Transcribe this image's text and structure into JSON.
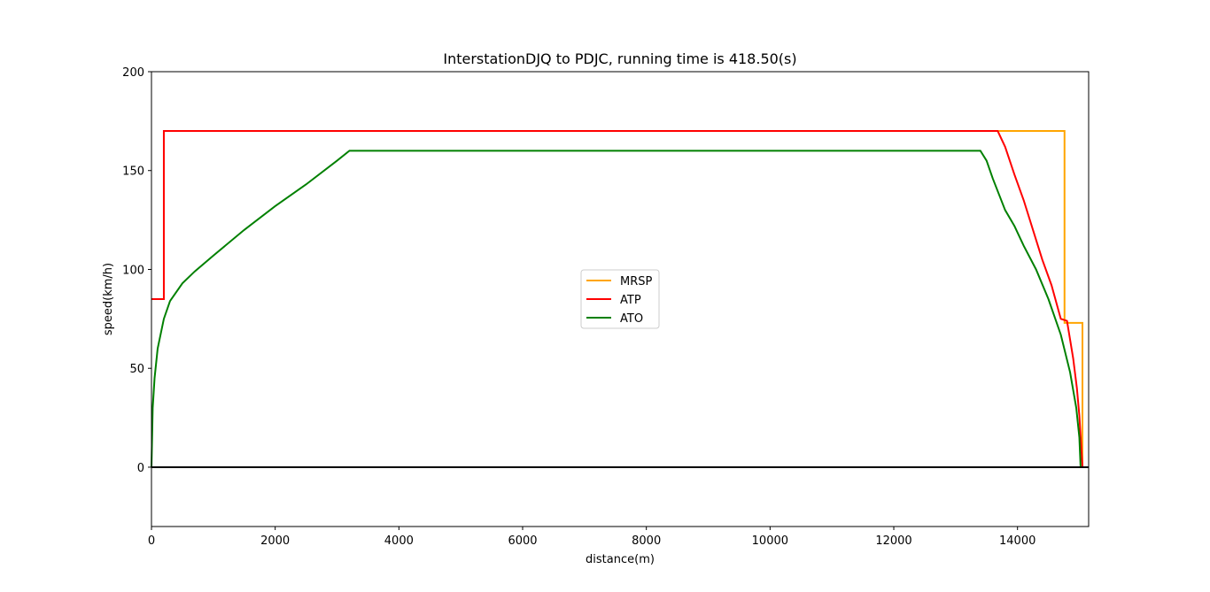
{
  "chart_data": {
    "type": "line",
    "title": "InterstationDJQ to PDJC, running time is 418.50(s)",
    "xlabel": "distance(m)",
    "ylabel": "speed(km/h)",
    "xlim": [
      0,
      15150
    ],
    "ylim": [
      -30,
      200
    ],
    "xticks": [
      0,
      2000,
      4000,
      6000,
      8000,
      10000,
      12000,
      14000
    ],
    "yticks": [
      0,
      50,
      100,
      150,
      200
    ],
    "grid": false,
    "legend_position": "center",
    "zero_line": {
      "y": 0,
      "color": "#000000"
    },
    "series": [
      {
        "name": "MRSP",
        "color": "#ffa500",
        "points": [
          [
            0,
            85
          ],
          [
            200,
            85
          ],
          [
            200,
            170
          ],
          [
            14760,
            170
          ],
          [
            14760,
            73
          ],
          [
            15050,
            73
          ],
          [
            15050,
            0
          ]
        ]
      },
      {
        "name": "ATP",
        "color": "#ff0000",
        "points": [
          [
            0,
            85
          ],
          [
            200,
            85
          ],
          [
            200,
            170
          ],
          [
            13680,
            170
          ],
          [
            13800,
            162
          ],
          [
            13950,
            148
          ],
          [
            14100,
            135
          ],
          [
            14250,
            120
          ],
          [
            14400,
            105
          ],
          [
            14550,
            92
          ],
          [
            14700,
            75
          ],
          [
            14800,
            74
          ],
          [
            14900,
            55
          ],
          [
            14960,
            40
          ],
          [
            15000,
            26
          ],
          [
            15030,
            10
          ],
          [
            15050,
            0
          ]
        ]
      },
      {
        "name": "ATO",
        "color": "#008000",
        "points": [
          [
            0,
            0
          ],
          [
            20,
            30
          ],
          [
            50,
            45
          ],
          [
            100,
            60
          ],
          [
            200,
            75
          ],
          [
            300,
            84
          ],
          [
            500,
            93
          ],
          [
            700,
            99
          ],
          [
            1000,
            107
          ],
          [
            1500,
            120
          ],
          [
            2000,
            132
          ],
          [
            2500,
            143
          ],
          [
            3000,
            155
          ],
          [
            3200,
            160
          ],
          [
            13400,
            160
          ],
          [
            13500,
            155
          ],
          [
            13600,
            146
          ],
          [
            13700,
            138
          ],
          [
            13800,
            130
          ],
          [
            13950,
            122
          ],
          [
            14100,
            112
          ],
          [
            14300,
            100
          ],
          [
            14500,
            85
          ],
          [
            14700,
            67
          ],
          [
            14850,
            48
          ],
          [
            14950,
            30
          ],
          [
            15000,
            15
          ],
          [
            15020,
            0
          ]
        ]
      }
    ]
  }
}
